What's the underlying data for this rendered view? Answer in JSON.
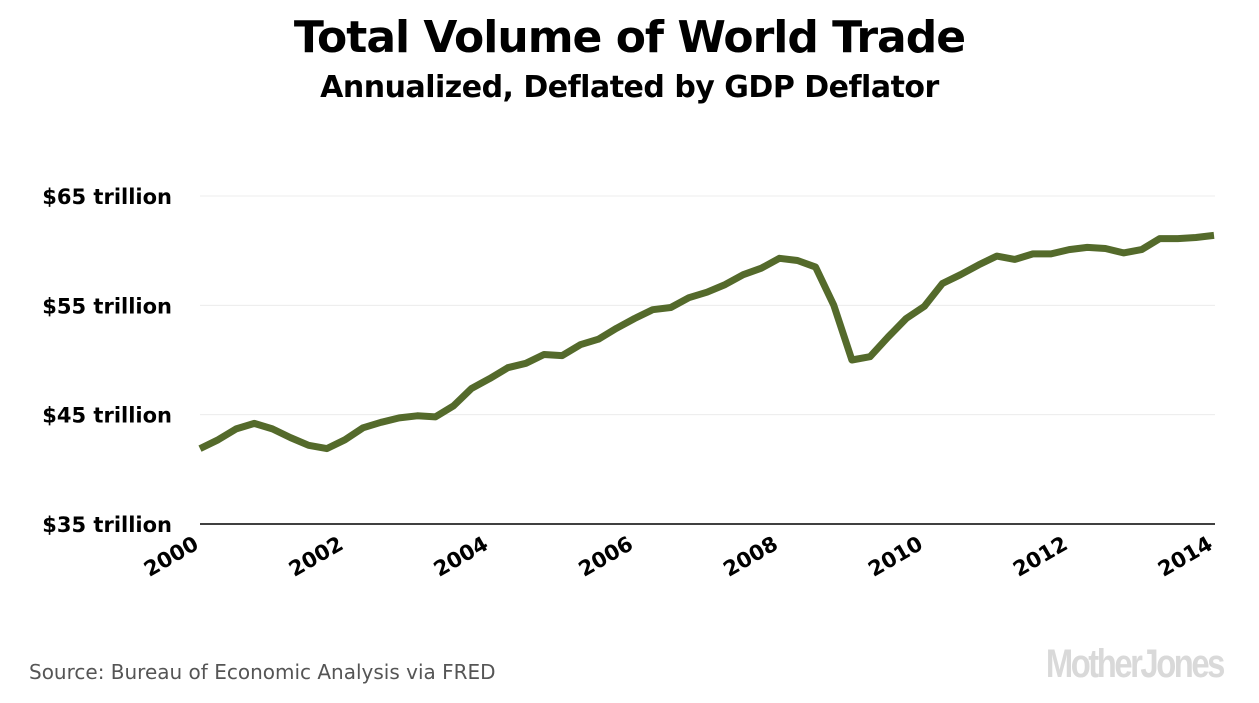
{
  "chart_data": {
    "type": "line",
    "title": "Total Volume of World Trade",
    "subtitle": "Annualized, Deflated by GDP Deflator",
    "xlabel": "",
    "ylabel": "",
    "ylim": [
      35,
      65
    ],
    "xlim": [
      2000,
      2014
    ],
    "yticks": [
      {
        "value": 65,
        "label": "$65 trillion"
      },
      {
        "value": 55,
        "label": "$55 trillion"
      },
      {
        "value": 45,
        "label": "$45 trillion"
      },
      {
        "value": 35,
        "label": "$35 trillion"
      }
    ],
    "xticks": [
      {
        "value": 2000,
        "label": "2000"
      },
      {
        "value": 2002,
        "label": "2002"
      },
      {
        "value": 2004,
        "label": "2004"
      },
      {
        "value": 2006,
        "label": "2006"
      },
      {
        "value": 2008,
        "label": "2008"
      },
      {
        "value": 2010,
        "label": "2010"
      },
      {
        "value": 2012,
        "label": "2012"
      },
      {
        "value": 2014,
        "label": "2014"
      }
    ],
    "grid": true,
    "legend": "none",
    "series": [
      {
        "name": "Total Volume of World Trade ($ trillion)",
        "color": "#546a2b",
        "x": [
          2000.0,
          2000.25,
          2000.5,
          2000.75,
          2001.0,
          2001.25,
          2001.5,
          2001.75,
          2002.0,
          2002.25,
          2002.5,
          2002.75,
          2003.0,
          2003.25,
          2003.5,
          2003.75,
          2004.0,
          2004.25,
          2004.5,
          2004.75,
          2005.0,
          2005.25,
          2005.5,
          2005.75,
          2006.0,
          2006.25,
          2006.5,
          2006.75,
          2007.0,
          2007.25,
          2007.5,
          2007.75,
          2008.0,
          2008.25,
          2008.5,
          2008.75,
          2009.0,
          2009.25,
          2009.5,
          2009.75,
          2010.0,
          2010.25,
          2010.5,
          2010.75,
          2011.0,
          2011.25,
          2011.5,
          2011.75,
          2012.0,
          2012.25,
          2012.5,
          2012.75,
          2013.0,
          2013.25,
          2013.5,
          2013.75,
          2014.0
        ],
        "values": [
          41.9,
          42.7,
          43.7,
          44.2,
          43.7,
          42.9,
          42.2,
          41.9,
          42.7,
          43.8,
          44.3,
          44.7,
          44.9,
          44.8,
          45.8,
          47.4,
          48.3,
          49.3,
          49.7,
          50.5,
          50.4,
          51.4,
          51.9,
          52.9,
          53.8,
          54.6,
          54.8,
          55.7,
          56.2,
          56.9,
          57.8,
          58.4,
          59.3,
          59.1,
          58.5,
          55.0,
          50.0,
          50.3,
          52.1,
          53.8,
          54.9,
          57.0,
          57.8,
          58.7,
          59.5,
          59.2,
          59.7,
          59.7,
          60.1,
          60.3,
          60.2,
          59.8,
          60.1,
          61.1,
          61.1,
          61.2,
          61.4
        ]
      }
    ],
    "source": "Source: Bureau of Economic Analysis via FRED",
    "branding": "MotherJones"
  }
}
